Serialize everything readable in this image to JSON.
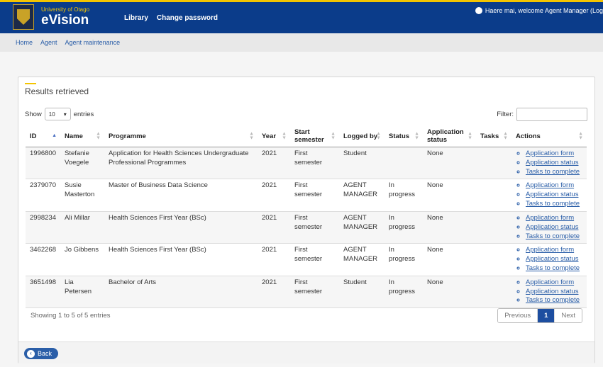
{
  "header": {
    "university": "University of Otago",
    "app_name": "eVision",
    "nav": [
      "Library",
      "Change password"
    ],
    "welcome": "Haere mai, welcome Agent Manager (Log"
  },
  "breadcrumb": [
    "Home",
    "Agent",
    "Agent maintenance"
  ],
  "panel": {
    "title": "Results retrieved",
    "show_label": "Show",
    "entries_value": "10",
    "entries_label": "entries",
    "filter_label": "Filter:"
  },
  "table": {
    "columns": [
      "ID",
      "Name",
      "Programme",
      "Year",
      "Start semester",
      "Logged by",
      "Status",
      "Application status",
      "Tasks",
      "Actions"
    ],
    "rows": [
      {
        "id": "1996800",
        "name": "Stefanie Voegele",
        "programme": "Application for Health Sciences Undergraduate Professional Programmes",
        "year": "2021",
        "semester": "First semester",
        "logged_by": "Student",
        "status": "",
        "app_status": "None",
        "tasks": ""
      },
      {
        "id": "2379070",
        "name": "Susie Masterton",
        "programme": "Master of Business Data Science",
        "year": "2021",
        "semester": "First semester",
        "logged_by": "AGENT MANAGER",
        "status": "In progress",
        "app_status": "None",
        "tasks": ""
      },
      {
        "id": "2998234",
        "name": "Ali Millar",
        "programme": "Health Sciences First Year (BSc)",
        "year": "2021",
        "semester": "First semester",
        "logged_by": "AGENT MANAGER",
        "status": "In progress",
        "app_status": "None",
        "tasks": ""
      },
      {
        "id": "3462268",
        "name": "Jo Gibbens",
        "programme": "Health Sciences First Year (BSc)",
        "year": "2021",
        "semester": "First semester",
        "logged_by": "AGENT MANAGER",
        "status": "In progress",
        "app_status": "None",
        "tasks": ""
      },
      {
        "id": "3651498",
        "name": "Lia Petersen",
        "programme": "Bachelor of Arts",
        "year": "2021",
        "semester": "First semester",
        "logged_by": "Student",
        "status": "In progress",
        "app_status": "None",
        "tasks": ""
      }
    ],
    "actions": [
      "Application form",
      "Application status",
      "Tasks to complete"
    ]
  },
  "footer": {
    "info": "Showing 1 to 5 of 5 entries",
    "pager": {
      "previous": "Previous",
      "current": "1",
      "next": "Next"
    },
    "back_label": "Back"
  }
}
